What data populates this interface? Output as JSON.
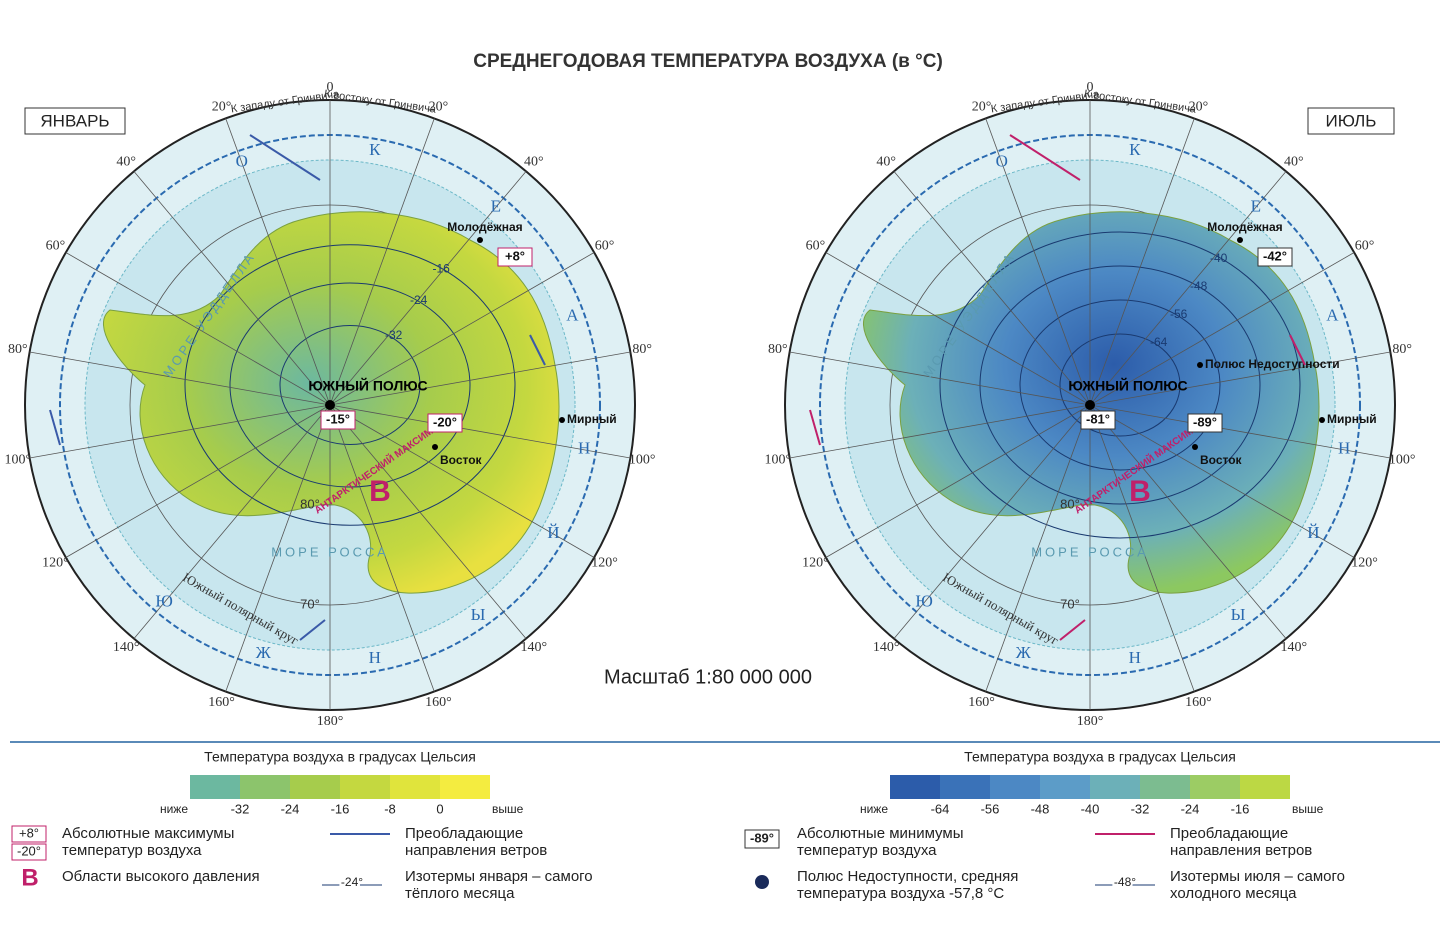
{
  "title": "СРЕДНЕГОДОВАЯ ТЕМПЕРАТУРА ВОЗДУХА (в °С)",
  "scale": "Масштаб 1:80 000 000",
  "maps": [
    {
      "month": "ЯНВАРЬ",
      "west_label": "К западу от Гринвича",
      "east_label": "К востоку от Гринвича",
      "lon_labels": [
        "0",
        "20°",
        "40°",
        "60°",
        "80°",
        "100°",
        "120°",
        "140°",
        "160°",
        "180°"
      ],
      "lat_labels": [
        "80°",
        "70°"
      ],
      "ocean_letters": [
        "Ю",
        "Ж",
        "Н",
        "Ы",
        "Й",
        "О",
        "К",
        "Е",
        "А",
        "Н"
      ],
      "sea_1": "МОРЕ УЭДДЕЛЛА",
      "sea_2": "МОРЕ РОССА",
      "circle": "Южный полярный круг",
      "pole": "ЮЖНЫЙ ПОЛЮС",
      "high": "В",
      "high_name": "АНТАРКТИЧЕСКИЙ МАКСИМУМ",
      "stations": [
        "Молодёжная",
        "Мирный",
        "Восток"
      ],
      "records": [
        "+8°",
        "-15°",
        "-20°"
      ],
      "isotherms": [
        "-32",
        "-24",
        "-16"
      ]
    },
    {
      "month": "ИЮЛЬ",
      "west_label": "К западу от Гринвича",
      "east_label": "К востоку от Гринвича",
      "lon_labels": [
        "0",
        "20°",
        "40°",
        "60°",
        "80°",
        "100°",
        "120°",
        "140°",
        "160°",
        "180°"
      ],
      "lat_labels": [
        "80°",
        "70°"
      ],
      "ocean_letters": [
        "Ю",
        "Ж",
        "Н",
        "Ы",
        "Й",
        "О",
        "К",
        "Е",
        "А",
        "Н"
      ],
      "sea_1": "МОРЕ УЭДДЕЛЛА",
      "sea_2": "МОРЕ РОССА",
      "circle": "Южный полярный круг",
      "pole": "ЮЖНЫЙ ПОЛЮС",
      "high": "В",
      "high_name": "АНТАРКТИЧЕСКИЙ МАКСИМУМ",
      "stations": [
        "Молодёжная",
        "Мирный",
        "Восток",
        "Полюс Недоступности"
      ],
      "records": [
        "-42°",
        "-81°",
        "-89°"
      ],
      "isotherms": [
        "-64",
        "-56",
        "-48",
        "-40"
      ]
    }
  ],
  "legends": [
    {
      "title": "Температура воздуха в градусах Цельсия",
      "low": "ниже",
      "high": "выше",
      "ticks": [
        -32,
        -24,
        -16,
        -8,
        0
      ],
      "colors": [
        "#6cb8a0",
        "#8cc46c",
        "#a6cc4c",
        "#c4d840",
        "#e0e43c",
        "#f4ec40"
      ],
      "items": [
        {
          "symbol": [
            "+8°",
            "-20°"
          ],
          "text": "Абсолютные максимумы температур воздуха"
        },
        {
          "text": "Преобладающие направления ветров"
        },
        {
          "symbol": "В",
          "text": "Области высокого давления"
        },
        {
          "symbol": "-24°",
          "text": "Изотермы января – самого тёплого месяца"
        }
      ]
    },
    {
      "title": "Температура воздуха в градусах Цельсия",
      "low": "ниже",
      "high": "выше",
      "ticks": [
        -64,
        -56,
        -48,
        -40,
        -32,
        -24,
        -16
      ],
      "colors": [
        "#2c5caa",
        "#3a72b8",
        "#4c88c4",
        "#5c9cc8",
        "#6cb0b8",
        "#7cbc90",
        "#9ccc64",
        "#bcd844"
      ],
      "items": [
        {
          "symbol": "-89°",
          "text": "Абсолютные минимумы температур воздуха"
        },
        {
          "text": "Преобладающие направления ветров"
        },
        {
          "text": "Полюс Недоступности, средняя температура воздуха -57,8 °С"
        },
        {
          "symbol": "-48°",
          "text": "Изотермы июля – самого холодного месяца"
        }
      ]
    }
  ]
}
